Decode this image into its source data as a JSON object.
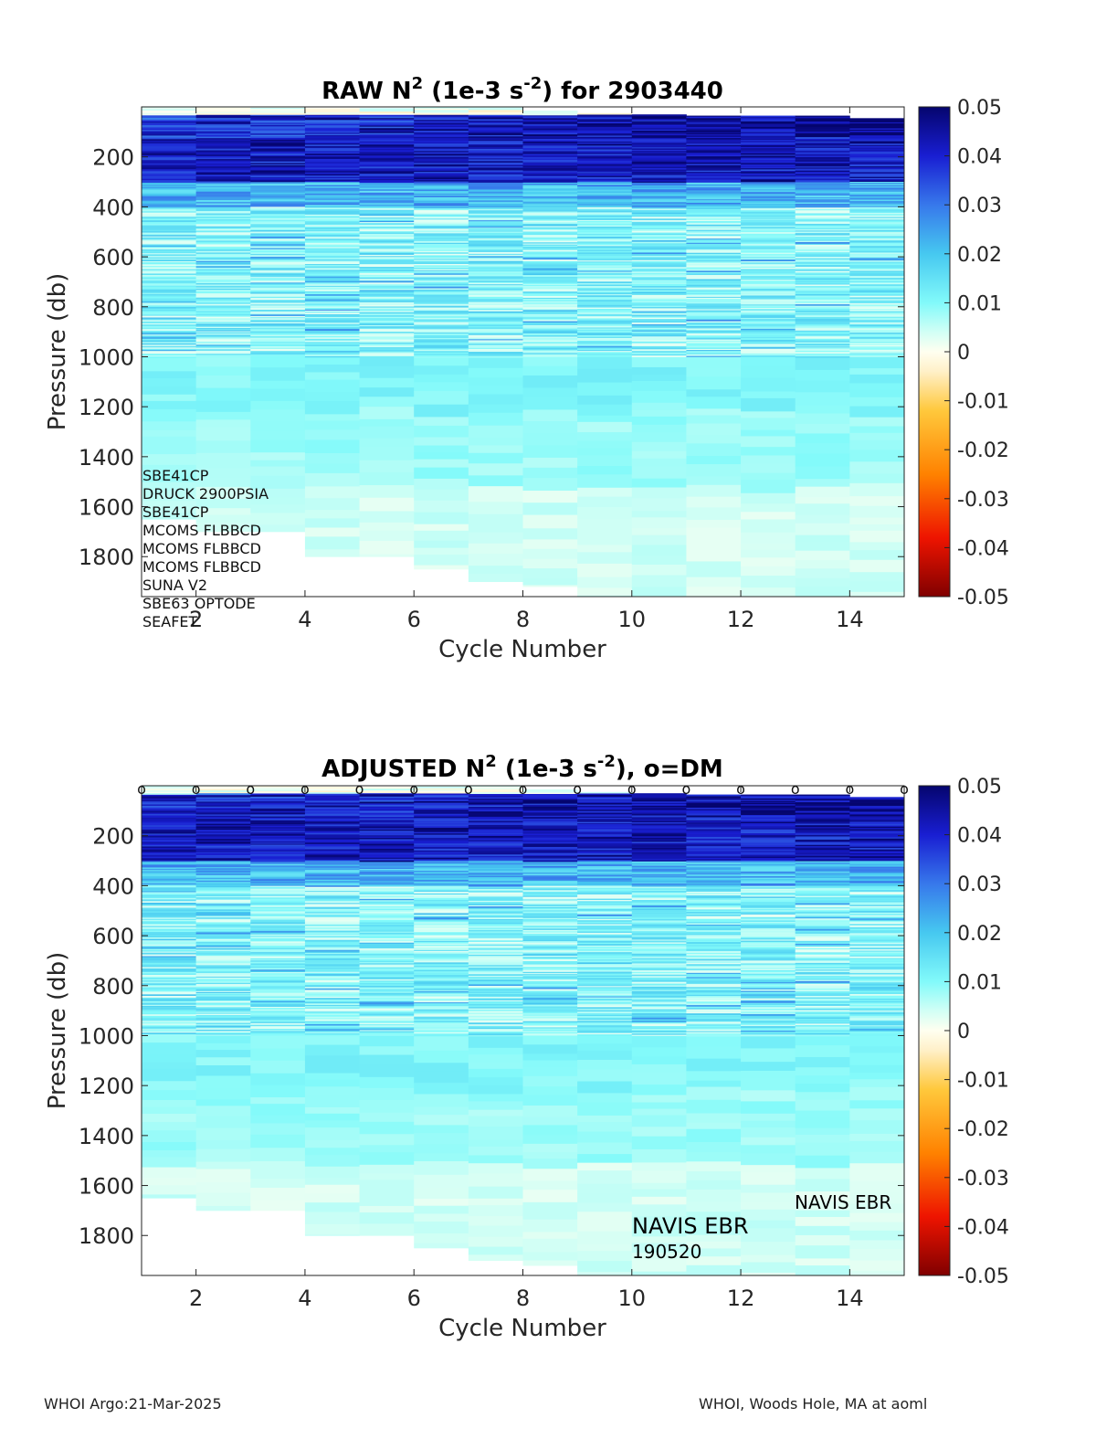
{
  "chart_data": [
    {
      "type": "heatmap",
      "title": "RAW N² (1e-3 s⁻²) for 2903440",
      "title_parts": {
        "lead": "RAW N",
        "sup1": "2",
        "mid": " (1e-3 s",
        "sup2": "-2",
        "tail": ") for 2903440"
      },
      "xlabel": "Cycle Number",
      "ylabel": "Pressure (db)",
      "xlim": [
        1,
        15
      ],
      "ylim": [
        1960,
        0
      ],
      "y_reversed": true,
      "x_ticks": [
        2,
        4,
        6,
        8,
        10,
        12,
        14
      ],
      "y_ticks": [
        200,
        400,
        600,
        800,
        1000,
        1200,
        1400,
        1600,
        1800
      ],
      "cycles": [
        1,
        2,
        3,
        4,
        5,
        6,
        7,
        8,
        9,
        10,
        11,
        12,
        13,
        14
      ],
      "max_pressure": [
        1650,
        1700,
        1700,
        1800,
        1800,
        1850,
        1900,
        1920,
        1960,
        1960,
        1960,
        1960,
        1960,
        1960
      ],
      "top_pressure": [
        0,
        0,
        0,
        5,
        5,
        0,
        0,
        15,
        25,
        30,
        35,
        35,
        35,
        45
      ],
      "colorbar": {
        "min": -0.05,
        "max": 0.05,
        "ticks": [
          "0.05",
          "0.04",
          "0.03",
          "0.02",
          "0.01",
          "0",
          "-0.01",
          "-0.02",
          "-0.03",
          "-0.04",
          "-0.05"
        ]
      },
      "annotations": [
        "SBE41CP",
        "DRUCK 2900PSIA",
        "SBE41CP",
        "MCOMS FLBBCD",
        "MCOMS FLBBCD",
        "MCOMS FLBBCD",
        "SUNA V2",
        "SBE63 OPTODE",
        "SEAFET"
      ],
      "profile_description": "N2 ~0.04-0.05 from 30-300 db, decreasing to ~0.01-0.02 by 400 db, ~0.005-0.015 with fine layering to 1000 db, ~0.008-0.012 from 1000-1200 db, ~0.003-0.007 below"
    },
    {
      "type": "heatmap",
      "title": "ADJUSTED N² (1e-3 s⁻²), o=DM",
      "title_parts": {
        "lead": "ADJUSTED N",
        "sup1": "2",
        "mid": " (1e-3 s",
        "sup2": "-2",
        "tail": "), o=DM"
      },
      "xlabel": "Cycle Number",
      "ylabel": "Pressure (db)",
      "xlim": [
        1,
        15
      ],
      "ylim": [
        1960,
        0
      ],
      "y_reversed": true,
      "x_ticks": [
        2,
        4,
        6,
        8,
        10,
        12,
        14
      ],
      "y_ticks": [
        200,
        400,
        600,
        800,
        1000,
        1200,
        1400,
        1600,
        1800
      ],
      "cycles": [
        1,
        2,
        3,
        4,
        5,
        6,
        7,
        8,
        9,
        10,
        11,
        12,
        13,
        14
      ],
      "max_pressure": [
        1650,
        1700,
        1700,
        1800,
        1800,
        1850,
        1900,
        1920,
        1960,
        1960,
        1960,
        1960,
        1960,
        1960
      ],
      "top_pressure": [
        0,
        0,
        0,
        5,
        5,
        0,
        0,
        15,
        25,
        30,
        35,
        35,
        35,
        45
      ],
      "dm_markers_x": [
        1,
        2,
        3,
        4,
        5,
        6,
        7,
        8,
        9,
        10,
        11,
        12,
        13,
        14,
        15
      ],
      "dm_marker_symbol": "o",
      "colorbar": {
        "min": -0.05,
        "max": 0.05,
        "ticks": [
          "0.05",
          "0.04",
          "0.03",
          "0.02",
          "0.01",
          "0",
          "-0.01",
          "-0.02",
          "-0.03",
          "-0.04",
          "-0.05"
        ]
      },
      "annotations": {
        "float_type_small": "NAVIS EBR",
        "float_type_large": "NAVIS EBR",
        "serial": "190520"
      }
    }
  ],
  "footer": {
    "left": "WHOI Argo:21-Mar-2025",
    "right": "WHOI, Woods Hole, MA at aoml"
  }
}
